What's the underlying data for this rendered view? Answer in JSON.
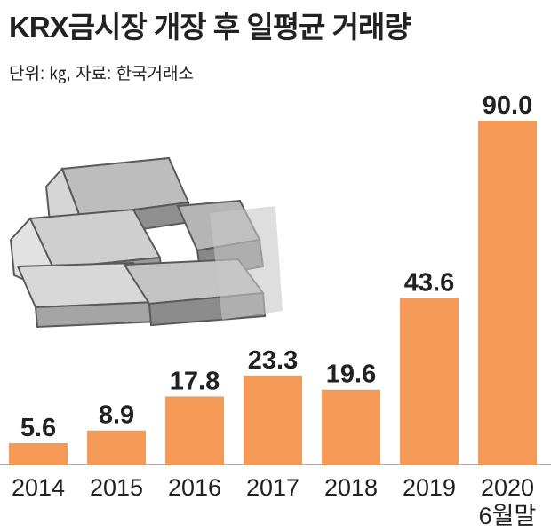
{
  "title": "KRX금시장 개장 후 일평균 거래량",
  "subtitle": "단위: ㎏, 자료: 한국거래소",
  "colors": {
    "bar": "#f59a56",
    "text": "#222222",
    "baseline": "#555555"
  },
  "illustration": "gold-bars-illustration",
  "chart_data": {
    "type": "bar",
    "title": "KRX금시장 개장 후 일평균 거래량",
    "categories": [
      "2014",
      "2015",
      "2016",
      "2017",
      "2018",
      "2019",
      "2020\n6월말"
    ],
    "values": [
      5.6,
      8.9,
      17.8,
      23.3,
      19.6,
      43.6,
      90.0
    ],
    "value_labels": [
      "5.6",
      "8.9",
      "17.8",
      "23.3",
      "19.6",
      "43.6",
      "90.0"
    ],
    "ylim": [
      0,
      90
    ],
    "grid": false,
    "legend": "none"
  }
}
